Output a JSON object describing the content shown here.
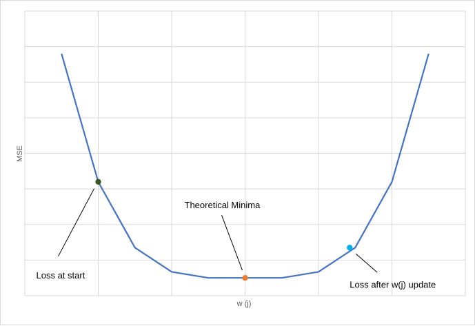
{
  "chart_data": {
    "type": "line",
    "title": "",
    "xlabel": "w (j)",
    "ylabel": "MSE",
    "grid": true,
    "legend": "none",
    "xlim": [
      0,
      12
    ],
    "ylim": [
      0,
      8
    ],
    "x": [
      1,
      2,
      3,
      4,
      5,
      6,
      7,
      8,
      9,
      10,
      11
    ],
    "series": [
      {
        "color": "#4472c4",
        "values": [
          6.8,
          3.2,
          1.35,
          0.67,
          0.5,
          0.5,
          0.5,
          0.67,
          1.35,
          3.2,
          6.8
        ]
      }
    ],
    "points": [
      {
        "label": "Loss at start",
        "x": 2,
        "y": 3.2,
        "color": "#375623"
      },
      {
        "label": "Theoretical Minima",
        "x": 6,
        "y": 0.5,
        "color": "#ed7d31"
      },
      {
        "label": "Loss after w(j) update",
        "x": 8.85,
        "y": 1.35,
        "color": "#00b0f0"
      }
    ]
  }
}
